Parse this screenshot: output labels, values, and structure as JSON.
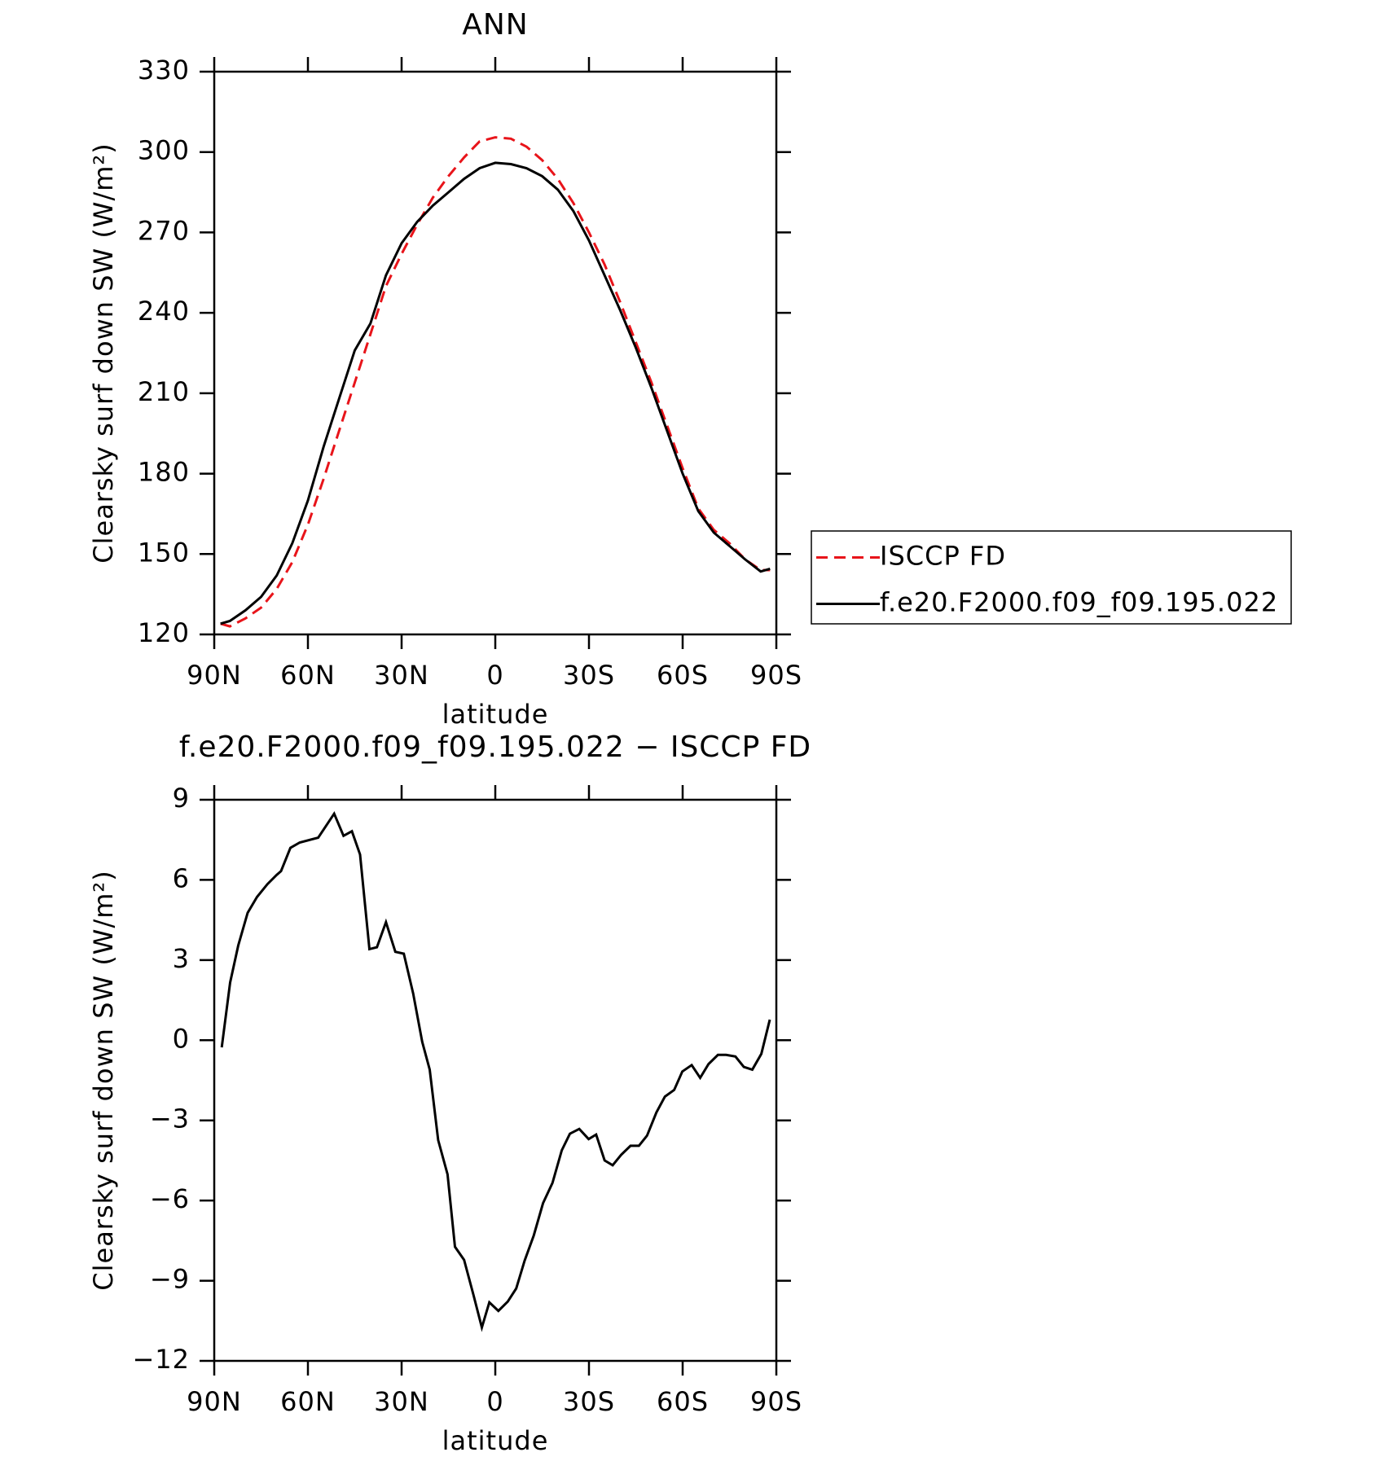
{
  "chart_data": [
    {
      "type": "line",
      "title": "ANN",
      "xlabel": "latitude",
      "ylabel": "Clearsky surf down SW (W/m²)",
      "xlim": [
        90,
        -90
      ],
      "ylim": [
        120,
        330
      ],
      "xticks": [
        {
          "value": 90,
          "label": "90N"
        },
        {
          "value": 60,
          "label": "60N"
        },
        {
          "value": 30,
          "label": "30N"
        },
        0,
        {
          "value": -30,
          "label": "30S"
        },
        {
          "value": -60,
          "label": "60S"
        },
        {
          "value": -90,
          "label": "90S"
        }
      ],
      "yticks": [
        120,
        150,
        180,
        210,
        240,
        270,
        300,
        330
      ],
      "legend": "right",
      "x": [
        88,
        85,
        80,
        75,
        70,
        65,
        60,
        55,
        50,
        45,
        40,
        35,
        30,
        25,
        20,
        15,
        10,
        5,
        0,
        -5,
        -10,
        -15,
        -20,
        -25,
        -30,
        -35,
        -40,
        -45,
        -50,
        -55,
        -60,
        -65,
        -70,
        -75,
        -80,
        -85,
        -88
      ],
      "series": [
        {
          "name": "ISCCP FD",
          "color": "#e8141a",
          "dashed": true,
          "values": [
            124,
            123,
            126,
            130,
            137,
            147,
            161,
            178,
            196,
            214,
            232,
            250,
            262,
            273,
            283,
            291,
            298,
            304,
            305.5,
            305,
            302,
            297,
            290,
            281,
            270,
            258,
            244,
            229,
            214,
            198,
            182,
            167,
            159,
            154,
            148,
            144,
            144
          ]
        },
        {
          "name": "f.e20.F2000.f09_f09.195.022",
          "color": "#000000",
          "dashed": false,
          "values": [
            124,
            125,
            129,
            134,
            142,
            154,
            170,
            190,
            208,
            226,
            236,
            254,
            266,
            274,
            280,
            285,
            290,
            294,
            296,
            295.5,
            294,
            291,
            286,
            278,
            267,
            254,
            241,
            227,
            212,
            196,
            180,
            166,
            158,
            153,
            148,
            143.5,
            144.5
          ]
        }
      ]
    },
    {
      "type": "line",
      "title": "f.e20.F2000.f09_f09.195.022 − ISCCP FD",
      "xlabel": "latitude",
      "ylabel": "Clearsky surf down SW (W/m²)",
      "xlim": [
        90,
        -90
      ],
      "ylim": [
        -12,
        9
      ],
      "xticks": [
        {
          "value": 90,
          "label": "90N"
        },
        {
          "value": 60,
          "label": "60N"
        },
        {
          "value": 30,
          "label": "30N"
        },
        0,
        {
          "value": -30,
          "label": "30S"
        },
        {
          "value": -60,
          "label": "60S"
        },
        {
          "value": -90,
          "label": "90S"
        }
      ],
      "yticks": [
        {
          "value": -12,
          "label": "−12"
        },
        {
          "value": -9,
          "label": "−9"
        },
        {
          "value": -6,
          "label": "−6"
        },
        {
          "value": -3,
          "label": "−3"
        },
        0,
        3,
        6,
        9
      ],
      "x": [
        87.6,
        84.9,
        82.3,
        79.3,
        76.3,
        73,
        70,
        68.6,
        65.6,
        62.6,
        56.7,
        51.6,
        48.6,
        45.9,
        43.3,
        40.3,
        37.9,
        35,
        32,
        29.3,
        26.3,
        23.4,
        21,
        18.3,
        15.3,
        12.9,
        10,
        7,
        4.3,
        1.9,
        -1,
        -4,
        -6.7,
        -9.4,
        -12.3,
        -15.3,
        -18.3,
        -21.3,
        -23.9,
        -26.9,
        -29.9,
        -32.3,
        -35,
        -37.6,
        -40.3,
        -43.3,
        -46,
        -48.6,
        -51.6,
        -54.3,
        -57.3,
        -59.9,
        -62.9,
        -65.6,
        -68.3,
        -71.3,
        -73.9,
        -76.9,
        -79.6,
        -82.3,
        -85.2,
        -87.9
      ],
      "series": [
        {
          "color": "#000000",
          "dashed": false,
          "values": [
            -0.27,
            2.16,
            3.55,
            4.77,
            5.36,
            5.84,
            6.19,
            6.33,
            7.2,
            7.4,
            7.58,
            8.48,
            7.65,
            7.82,
            6.95,
            3.41,
            3.48,
            4.42,
            3.31,
            3.24,
            1.75,
            -0.06,
            -1.1,
            -3.74,
            -5.02,
            -7.73,
            -8.22,
            -9.53,
            -10.75,
            -9.81,
            -10.13,
            -9.78,
            -9.29,
            -8.25,
            -7.31,
            -6.1,
            -5.34,
            -4.12,
            -3.5,
            -3.32,
            -3.7,
            -3.53,
            -4.5,
            -4.68,
            -4.29,
            -3.95,
            -3.95,
            -3.57,
            -2.7,
            -2.11,
            -1.86,
            -1.17,
            -0.93,
            -1.41,
            -0.89,
            -0.55,
            -0.55,
            -0.61,
            -1,
            -1.1,
            -0.51,
            0.77
          ]
        }
      ]
    }
  ]
}
